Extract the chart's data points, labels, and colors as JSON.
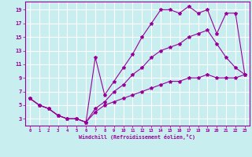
{
  "xlabel": "Windchill (Refroidissement éolien,°C)",
  "bg_color": "#c8eef0",
  "grid_color": "#ffffff",
  "line_color": "#990099",
  "spine_color": "#990099",
  "xlim": [
    -0.5,
    23.5
  ],
  "ylim": [
    2.0,
    20.2
  ],
  "xticks": [
    0,
    1,
    2,
    3,
    4,
    5,
    6,
    7,
    8,
    9,
    10,
    11,
    12,
    13,
    14,
    15,
    16,
    17,
    18,
    19,
    20,
    21,
    22,
    23
  ],
  "yticks": [
    3,
    5,
    7,
    9,
    11,
    13,
    15,
    17,
    19
  ],
  "line1_x": [
    0,
    1,
    2,
    3,
    4,
    5,
    6,
    7,
    8,
    9,
    10,
    11,
    12,
    13,
    14,
    15,
    16,
    17,
    18,
    19,
    20,
    21,
    22,
    23
  ],
  "line1_y": [
    6,
    5,
    4.5,
    3.5,
    3.0,
    3.0,
    2.5,
    12,
    6.5,
    8.5,
    10.5,
    12.5,
    15,
    17,
    19,
    19,
    18.5,
    19.5,
    18.5,
    19,
    15.5,
    18.5,
    18.5,
    9.5
  ],
  "line2_x": [
    0,
    1,
    2,
    3,
    4,
    5,
    6,
    7,
    8,
    9,
    10,
    11,
    12,
    13,
    14,
    15,
    16,
    17,
    18,
    19,
    20,
    21,
    22,
    23
  ],
  "line2_y": [
    6,
    5,
    4.5,
    3.5,
    3.0,
    3.0,
    2.5,
    4.5,
    5.5,
    7,
    8,
    9.5,
    10.5,
    12,
    13,
    13.5,
    14,
    15,
    15.5,
    16,
    14,
    12,
    10.5,
    9.5
  ],
  "line3_x": [
    0,
    1,
    2,
    3,
    4,
    5,
    6,
    7,
    8,
    9,
    10,
    11,
    12,
    13,
    14,
    15,
    16,
    17,
    18,
    19,
    20,
    21,
    22,
    23
  ],
  "line3_y": [
    6,
    5,
    4.5,
    3.5,
    3.0,
    3.0,
    2.5,
    4,
    5,
    5.5,
    6,
    6.5,
    7,
    7.5,
    8,
    8.5,
    8.5,
    9,
    9,
    9.5,
    9,
    9,
    9,
    9.5
  ]
}
